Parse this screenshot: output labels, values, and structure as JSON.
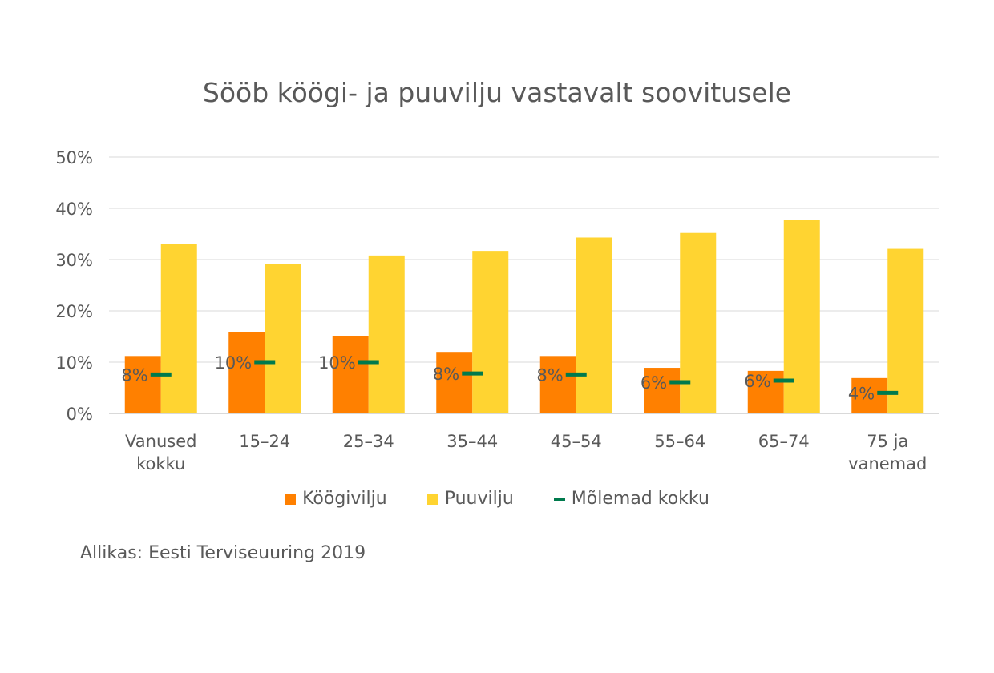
{
  "chart_data": {
    "type": "bar",
    "title": "Sööb köögi- ja puuvilju vastavalt soovitusele",
    "categories": [
      [
        "Vanused",
        "kokku"
      ],
      [
        "15–24"
      ],
      [
        "25–34"
      ],
      [
        "35–44"
      ],
      [
        "45–54"
      ],
      [
        "55–64"
      ],
      [
        "65–74"
      ],
      [
        "75 ja",
        "vanemad"
      ]
    ],
    "series": [
      {
        "name": "Köögivilju",
        "kind": "bar",
        "color": "#FF8000",
        "values": [
          11.2,
          15.9,
          15.0,
          12.0,
          11.2,
          8.9,
          8.3,
          6.9
        ]
      },
      {
        "name": "Puuvilju",
        "kind": "bar",
        "color": "#FFD431",
        "values": [
          33.0,
          29.2,
          30.8,
          31.7,
          34.3,
          35.2,
          37.7,
          32.1
        ]
      },
      {
        "name": "Mõlemad kokku",
        "kind": "marker",
        "color": "#007A4D",
        "values": [
          7.6,
          10.0,
          10.0,
          7.8,
          7.6,
          6.1,
          6.4,
          4.0
        ],
        "labels": [
          "8%",
          "10%",
          "10%",
          "8%",
          "8%",
          "6%",
          "6%",
          "4%"
        ]
      }
    ],
    "ylim": [
      0,
      50
    ],
    "yticks": [
      "0%",
      "10%",
      "20%",
      "30%",
      "40%",
      "50%"
    ],
    "grid": true,
    "legend_position": "bottom",
    "source": "Allikas: Eesti Terviseuuring 2019"
  }
}
